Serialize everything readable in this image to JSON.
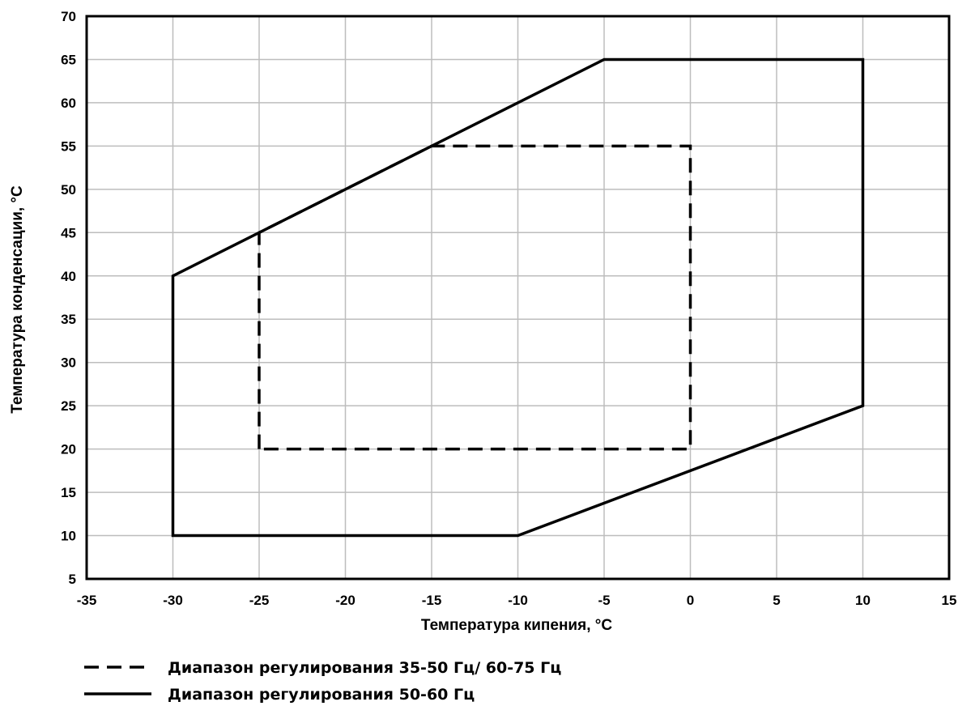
{
  "chart_data": {
    "type": "line",
    "title": "",
    "xlabel": "Температура кипения, °C",
    "ylabel": "Температура конденсации, °C",
    "xlim": [
      -35,
      15
    ],
    "ylim": [
      5,
      70
    ],
    "x_ticks": [
      -35,
      -30,
      -25,
      -20,
      -15,
      -10,
      -5,
      0,
      5,
      10,
      15
    ],
    "y_ticks": [
      5,
      10,
      15,
      20,
      25,
      30,
      35,
      40,
      45,
      50,
      55,
      60,
      65,
      70
    ],
    "grid": true,
    "legend_position": "bottom-left",
    "series": [
      {
        "name": "Диапазон регулирования 35-50 Гц/ 60-75 Гц",
        "style": "dashed",
        "color": "#000000",
        "closed": true,
        "points": [
          [
            -25,
            20
          ],
          [
            -25,
            45
          ],
          [
            -15,
            55
          ],
          [
            0,
            55
          ],
          [
            0,
            20
          ]
        ]
      },
      {
        "name": "Диапазон регулирования 50-60 Гц",
        "style": "solid",
        "color": "#000000",
        "closed": true,
        "points": [
          [
            -30,
            10
          ],
          [
            -30,
            40
          ],
          [
            -5,
            65
          ],
          [
            10,
            65
          ],
          [
            10,
            25
          ],
          [
            -10,
            10
          ]
        ]
      }
    ]
  }
}
